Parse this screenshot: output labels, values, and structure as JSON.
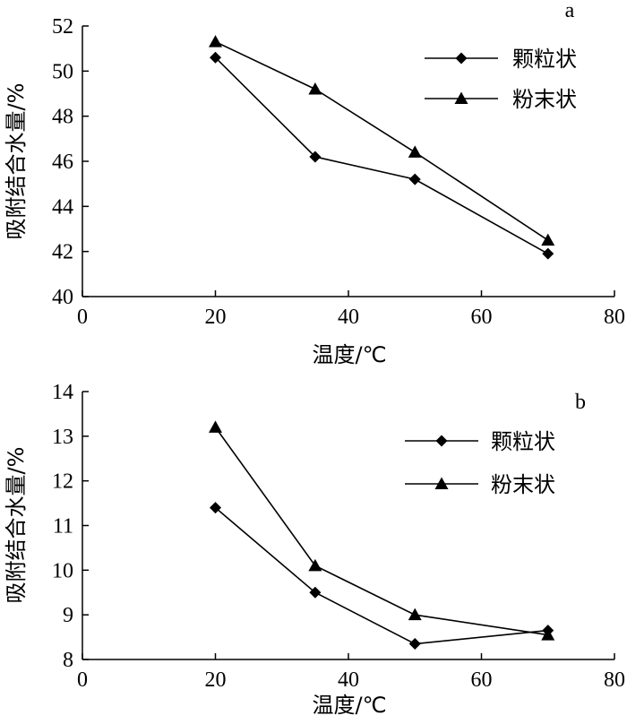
{
  "chart_data": [
    {
      "type": "line",
      "panel_label": "a",
      "xlabel": "温度/℃",
      "ylabel": "吸附结合水量/%",
      "xlim": [
        0,
        80
      ],
      "ylim": [
        40,
        52
      ],
      "xticks": [
        0,
        20,
        40,
        60,
        80
      ],
      "yticks": [
        40,
        42,
        44,
        46,
        48,
        50,
        52
      ],
      "legend_position": "top-right",
      "series": [
        {
          "name": "颗粒状",
          "marker": "diamond",
          "x": [
            20,
            35,
            50,
            70
          ],
          "y": [
            50.6,
            46.2,
            45.2,
            41.9
          ]
        },
        {
          "name": "粉末状",
          "marker": "triangle",
          "x": [
            20,
            35,
            50,
            70
          ],
          "y": [
            51.3,
            49.2,
            46.4,
            42.5
          ]
        }
      ]
    },
    {
      "type": "line",
      "panel_label": "b",
      "xlabel": "温度/℃",
      "ylabel": "吸附结合水量/%",
      "xlim": [
        0,
        80
      ],
      "ylim": [
        8,
        14
      ],
      "xticks": [
        0,
        20,
        40,
        60,
        80
      ],
      "yticks": [
        8,
        9,
        10,
        11,
        12,
        13,
        14
      ],
      "legend_position": "top-right",
      "series": [
        {
          "name": "颗粒状",
          "marker": "diamond",
          "x": [
            20,
            35,
            50,
            70
          ],
          "y": [
            11.4,
            9.5,
            8.35,
            8.65
          ]
        },
        {
          "name": "粉末状",
          "marker": "triangle",
          "x": [
            20,
            35,
            50,
            70
          ],
          "y": [
            13.2,
            10.1,
            9.0,
            8.55
          ]
        }
      ]
    }
  ]
}
